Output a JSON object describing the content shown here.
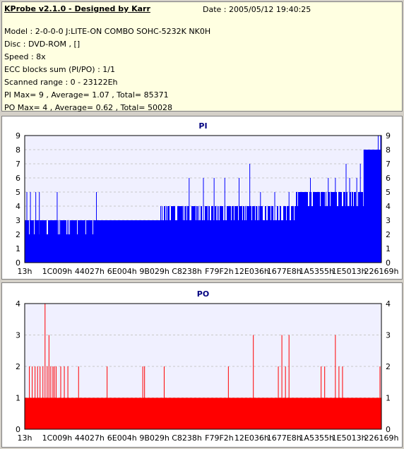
{
  "info": {
    "title": "KProbe v2.1.0 - Designed by Karr",
    "date": "Date : 2005/05/12 19:40:25",
    "lines": [
      "Model : 2-0-0-0 J:LITE-ON COMBO SOHC-5232K NK0H",
      "Disc : DVD-ROM ,  []",
      "Speed : 8x",
      "ECC blocks sum (PI/PO) : 1/1",
      "Scanned range : 0 - 23122Eh",
      "PI Max= 9 , Average= 1.07 , Total= 85371",
      "PO Max= 4 , Average= 0.62 , Total= 50028"
    ]
  },
  "colors": {
    "pi": "#0000ff",
    "po": "#ff0000",
    "plot_bg": "#f0f0ff",
    "grid": "#c8c8c8",
    "title": "#000080"
  },
  "chart_data": [
    {
      "type": "bar",
      "title": "PI",
      "ylim": [
        0,
        9
      ],
      "yticks": [
        0,
        1,
        2,
        3,
        4,
        5,
        6,
        7,
        8,
        9
      ],
      "xticks": [
        "13h",
        "1C009h",
        "44027h",
        "6E004h",
        "9B029h",
        "C8238h",
        "F79F2h",
        "12E036h",
        "1677E8h",
        "1A5355h",
        "1E5013h",
        "226169h"
      ],
      "grid": true,
      "baseline": [
        {
          "range": [
            0,
            0.38
          ],
          "value": 3
        },
        {
          "range": [
            0.38,
            0.76
          ],
          "value": 4
        },
        {
          "range": [
            0.76,
            0.95
          ],
          "value": 5
        },
        {
          "range": [
            0.95,
            1.0
          ],
          "value": 8
        }
      ],
      "dips": [
        {
          "range": [
            0.0,
            0.2
          ],
          "value": 2,
          "density": 0.2
        },
        {
          "range": [
            0.38,
            0.76
          ],
          "value": 3,
          "density": 0.35
        },
        {
          "range": [
            0.76,
            0.95
          ],
          "value": 4,
          "density": 0.2
        }
      ],
      "spikes": [
        {
          "x": 0.005,
          "value": 5
        },
        {
          "x": 0.015,
          "value": 5
        },
        {
          "x": 0.03,
          "value": 5
        },
        {
          "x": 0.04,
          "value": 5
        },
        {
          "x": 0.09,
          "value": 5
        },
        {
          "x": 0.2,
          "value": 5
        },
        {
          "x": 0.46,
          "value": 6
        },
        {
          "x": 0.5,
          "value": 6
        },
        {
          "x": 0.53,
          "value": 6
        },
        {
          "x": 0.56,
          "value": 6
        },
        {
          "x": 0.6,
          "value": 6
        },
        {
          "x": 0.63,
          "value": 7
        },
        {
          "x": 0.66,
          "value": 5
        },
        {
          "x": 0.7,
          "value": 5
        },
        {
          "x": 0.74,
          "value": 5
        },
        {
          "x": 0.77,
          "value": 5
        },
        {
          "x": 0.8,
          "value": 6
        },
        {
          "x": 0.83,
          "value": 5
        },
        {
          "x": 0.85,
          "value": 6
        },
        {
          "x": 0.87,
          "value": 6
        },
        {
          "x": 0.9,
          "value": 7
        },
        {
          "x": 0.91,
          "value": 6
        },
        {
          "x": 0.93,
          "value": 6
        },
        {
          "x": 0.94,
          "value": 7
        },
        {
          "x": 0.95,
          "value": 8
        },
        {
          "x": 0.96,
          "value": 7
        },
        {
          "x": 0.97,
          "value": 7
        },
        {
          "x": 0.98,
          "value": 8
        },
        {
          "x": 0.99,
          "value": 9
        },
        {
          "x": 0.997,
          "value": 9
        }
      ]
    },
    {
      "type": "bar",
      "title": "PO",
      "ylim": [
        0,
        4
      ],
      "yticks": [
        0,
        1,
        2,
        3,
        4
      ],
      "xticks": [
        "13h",
        "1C009h",
        "44027h",
        "6E004h",
        "9B029h",
        "C8238h",
        "F79F2h",
        "12E036h",
        "1677E8h",
        "1A5355h",
        "1E5013h",
        "226169h"
      ],
      "grid": true,
      "baseline": [
        {
          "range": [
            0,
            1.0
          ],
          "value": 1
        }
      ],
      "spikes": [
        {
          "x": 0.012,
          "value": 2
        },
        {
          "x": 0.02,
          "value": 2
        },
        {
          "x": 0.028,
          "value": 2
        },
        {
          "x": 0.035,
          "value": 2
        },
        {
          "x": 0.042,
          "value": 2
        },
        {
          "x": 0.05,
          "value": 2
        },
        {
          "x": 0.056,
          "value": 4
        },
        {
          "x": 0.062,
          "value": 2
        },
        {
          "x": 0.067,
          "value": 3
        },
        {
          "x": 0.072,
          "value": 2
        },
        {
          "x": 0.078,
          "value": 2
        },
        {
          "x": 0.082,
          "value": 2
        },
        {
          "x": 0.087,
          "value": 2
        },
        {
          "x": 0.1,
          "value": 2
        },
        {
          "x": 0.11,
          "value": 2
        },
        {
          "x": 0.12,
          "value": 2
        },
        {
          "x": 0.15,
          "value": 2
        },
        {
          "x": 0.23,
          "value": 2
        },
        {
          "x": 0.33,
          "value": 2
        },
        {
          "x": 0.335,
          "value": 2
        },
        {
          "x": 0.39,
          "value": 2
        },
        {
          "x": 0.57,
          "value": 2
        },
        {
          "x": 0.64,
          "value": 3
        },
        {
          "x": 0.71,
          "value": 2
        },
        {
          "x": 0.72,
          "value": 3
        },
        {
          "x": 0.73,
          "value": 2
        },
        {
          "x": 0.74,
          "value": 3
        },
        {
          "x": 0.83,
          "value": 2
        },
        {
          "x": 0.84,
          "value": 2
        },
        {
          "x": 0.87,
          "value": 3
        },
        {
          "x": 0.88,
          "value": 2
        },
        {
          "x": 0.89,
          "value": 2
        },
        {
          "x": 0.995,
          "value": 2
        }
      ]
    }
  ]
}
